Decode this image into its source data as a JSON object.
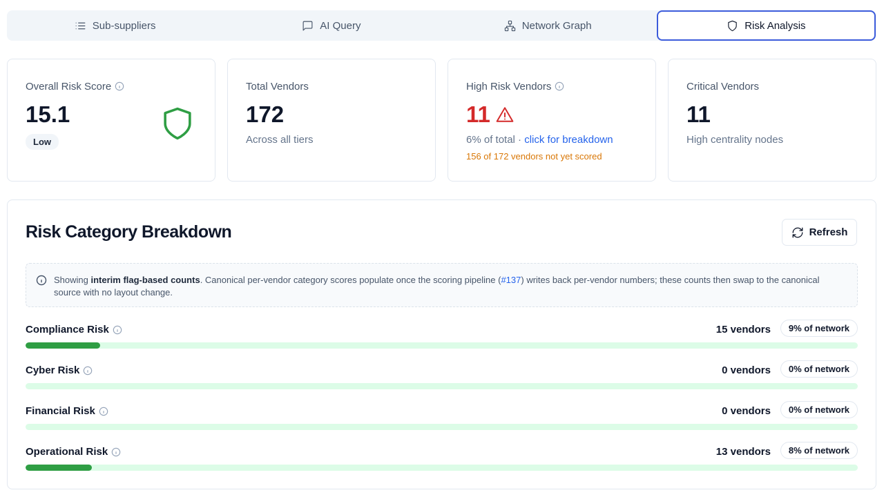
{
  "tabs": [
    {
      "label": "Sub-suppliers",
      "icon": "list-icon",
      "active": false
    },
    {
      "label": "AI Query",
      "icon": "message-icon",
      "active": false
    },
    {
      "label": "Network Graph",
      "icon": "network-icon",
      "active": false
    },
    {
      "label": "Risk Analysis",
      "icon": "shield-icon",
      "active": true
    }
  ],
  "cards": {
    "overall": {
      "label": "Overall Risk Score",
      "value": "15.1",
      "badge": "Low",
      "icon": "shield-icon",
      "icon_color": "#2f9e44"
    },
    "total": {
      "label": "Total Vendors",
      "value": "172",
      "sub": "Across all tiers"
    },
    "high": {
      "label": "High Risk Vendors",
      "value": "11",
      "sub_prefix": "6% of total · ",
      "sub_link": "click for breakdown",
      "note": "156 of 172 vendors not yet scored",
      "value_color": "#d42a2a"
    },
    "critical": {
      "label": "Critical Vendors",
      "value": "11",
      "sub": "High centrality nodes"
    }
  },
  "breakdown": {
    "title": "Risk Category Breakdown",
    "refresh_label": "Refresh",
    "notice": {
      "prefix": "Showing ",
      "bold": "interim flag-based counts",
      "middle": ". Canonical per-vendor category scores populate once the scoring pipeline (",
      "link": "#137",
      "suffix": ") writes back per-vendor numbers; these counts then swap to the canonical source with no layout change."
    },
    "rows": [
      {
        "label": "Compliance Risk",
        "count": "15 vendors",
        "pct_label": "9% of network",
        "fraction": 0.09
      },
      {
        "label": "Cyber Risk",
        "count": "0 vendors",
        "pct_label": "0% of network",
        "fraction": 0
      },
      {
        "label": "Financial Risk",
        "count": "0 vendors",
        "pct_label": "0% of network",
        "fraction": 0
      },
      {
        "label": "Operational Risk",
        "count": "13 vendors",
        "pct_label": "8% of network",
        "fraction": 0.08
      }
    ]
  },
  "colors": {
    "accent": "#3b5bdb",
    "danger": "#d42a2a",
    "success": "#2f9e44",
    "warning": "#d97706",
    "link": "#2563eb"
  }
}
